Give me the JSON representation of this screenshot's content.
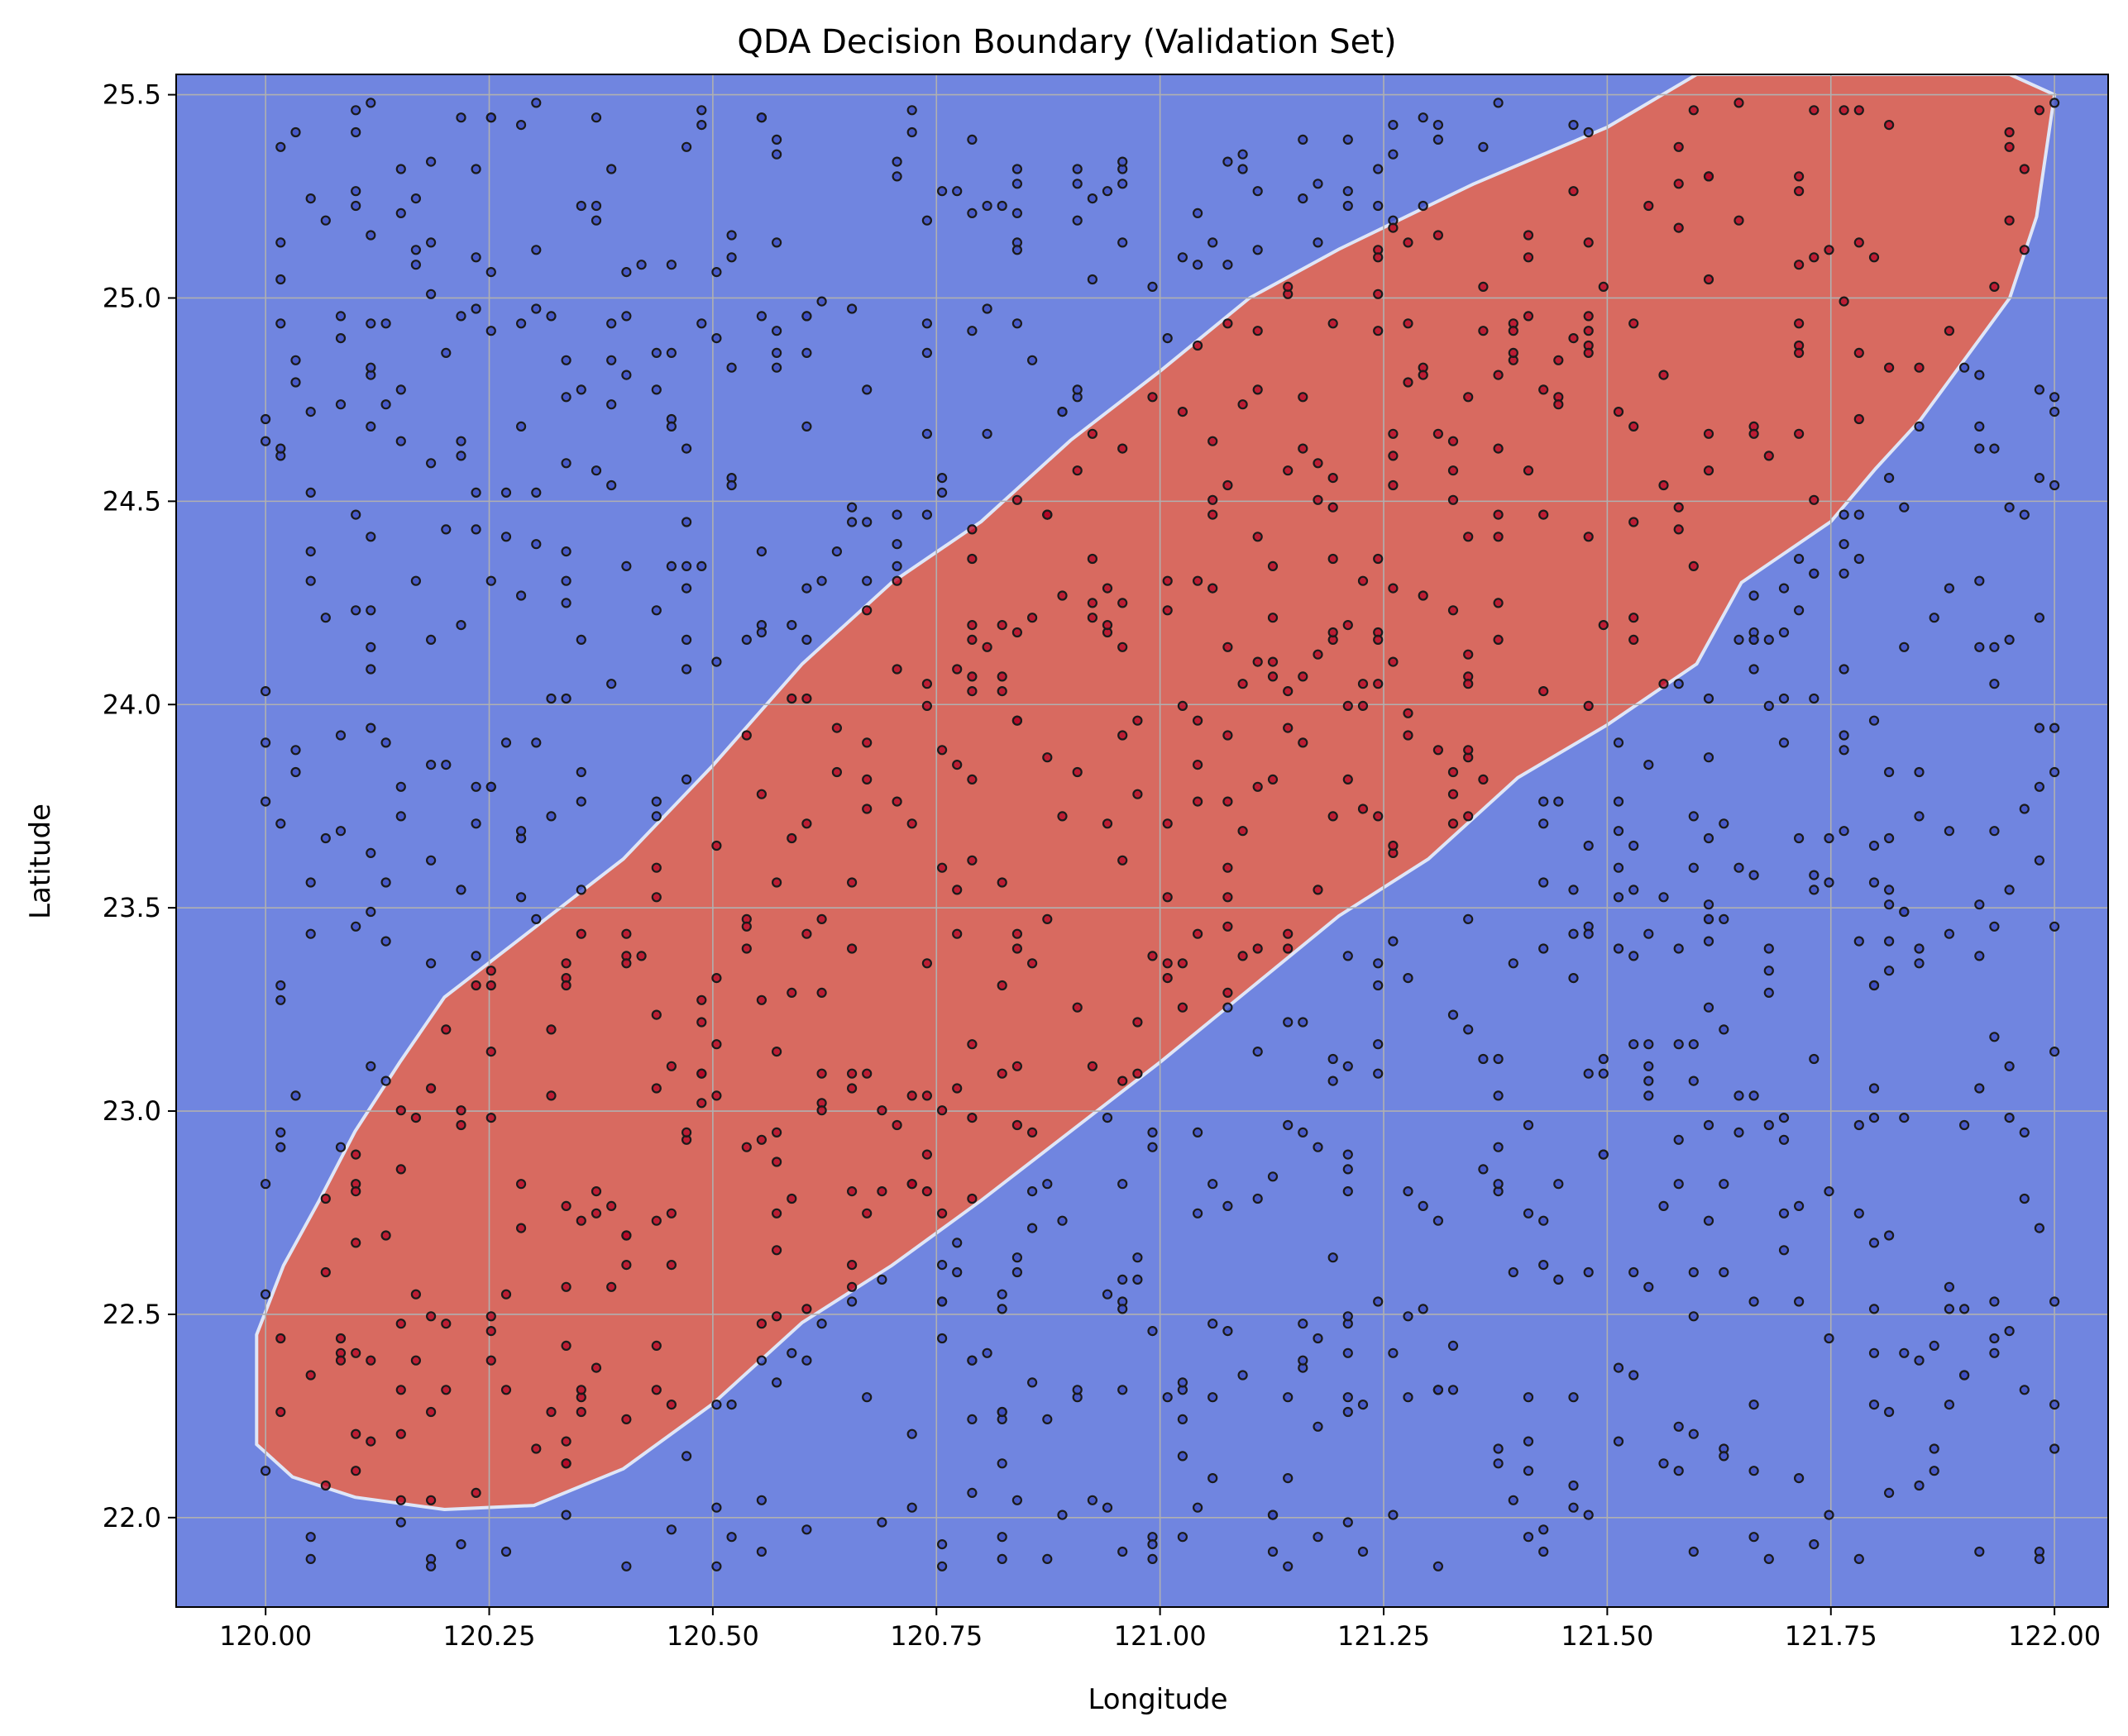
{
  "chart_data": {
    "type": "scatter",
    "title": "QDA Decision Boundary (Validation Set)",
    "xlabel": "Longitude",
    "ylabel": "Latitude",
    "xlim": [
      119.9,
      122.06
    ],
    "ylim": [
      21.78,
      25.55
    ],
    "xticks": [
      120.0,
      120.25,
      120.5,
      120.75,
      121.0,
      121.25,
      121.5,
      121.75,
      122.0
    ],
    "xtick_labels": [
      "120.00",
      "120.25",
      "120.50",
      "120.75",
      "121.00",
      "121.25",
      "121.50",
      "121.75",
      "122.00"
    ],
    "yticks": [
      22.0,
      22.5,
      23.0,
      23.5,
      24.0,
      24.5,
      25.0,
      25.5
    ],
    "ytick_labels": [
      "22.0",
      "22.5",
      "23.0",
      "23.5",
      "24.0",
      "24.5",
      "25.0",
      "25.5"
    ],
    "grid": true,
    "regions": [
      {
        "class": 0,
        "color": "#7085e0",
        "description_polygon_note": "background"
      },
      {
        "class": 1,
        "color": "#d86a60",
        "boundary": [
          [
            119.99,
            22.45
          ],
          [
            120.02,
            22.62
          ],
          [
            120.06,
            22.78
          ],
          [
            120.1,
            22.95
          ],
          [
            120.15,
            23.12
          ],
          [
            120.2,
            23.28
          ],
          [
            120.3,
            23.45
          ],
          [
            120.4,
            23.62
          ],
          [
            120.5,
            23.85
          ],
          [
            120.6,
            24.1
          ],
          [
            120.7,
            24.3
          ],
          [
            120.8,
            24.45
          ],
          [
            120.9,
            24.65
          ],
          [
            121.0,
            24.82
          ],
          [
            121.1,
            25.0
          ],
          [
            121.2,
            25.12
          ],
          [
            121.35,
            25.28
          ],
          [
            121.5,
            25.42
          ],
          [
            121.6,
            25.55
          ],
          [
            121.95,
            25.55
          ],
          [
            122.0,
            25.5
          ],
          [
            121.98,
            25.2
          ],
          [
            121.95,
            25.0
          ],
          [
            121.9,
            24.85
          ],
          [
            121.85,
            24.7
          ],
          [
            121.8,
            24.58
          ],
          [
            121.75,
            24.45
          ],
          [
            121.65,
            24.3
          ],
          [
            121.6,
            24.1
          ],
          [
            121.5,
            23.95
          ],
          [
            121.4,
            23.82
          ],
          [
            121.3,
            23.62
          ],
          [
            121.2,
            23.48
          ],
          [
            121.1,
            23.3
          ],
          [
            121.0,
            23.12
          ],
          [
            120.9,
            22.95
          ],
          [
            120.8,
            22.78
          ],
          [
            120.7,
            22.62
          ],
          [
            120.6,
            22.48
          ],
          [
            120.5,
            22.28
          ],
          [
            120.4,
            22.12
          ],
          [
            120.3,
            22.03
          ],
          [
            120.2,
            22.02
          ],
          [
            120.1,
            22.05
          ],
          [
            120.03,
            22.1
          ],
          [
            119.99,
            22.18
          ]
        ]
      }
    ],
    "classes": [
      {
        "id": 0,
        "color": "#3b4cc0"
      },
      {
        "id": 1,
        "color": "#b40426"
      }
    ],
    "point_generation": {
      "seed": 20250611,
      "count": 1150
    }
  }
}
